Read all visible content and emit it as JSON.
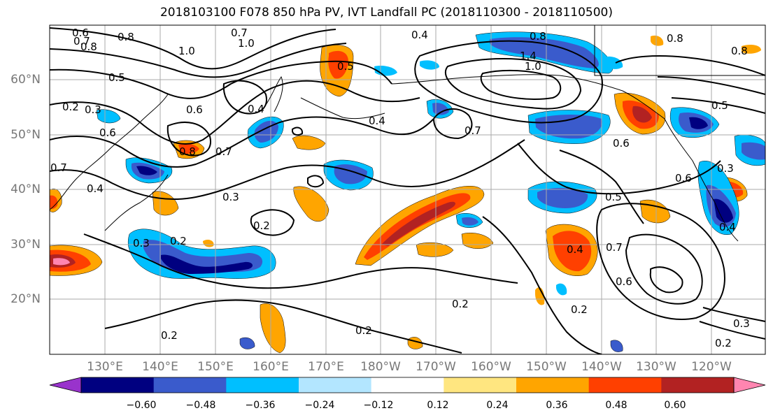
{
  "title": "2018103100 F078 850 hPa PV, IVT Landfall PC (2018110300 - 2018110500)",
  "lat_ticks": [
    "60°N",
    "50°N",
    "40°N",
    "30°N",
    "20°N"
  ],
  "lon_ticks": [
    "130°E",
    "140°E",
    "150°E",
    "160°E",
    "170°E",
    "180°W",
    "170°W",
    "160°W",
    "150°W",
    "140°W",
    "130°W",
    "120°W"
  ],
  "colorbar": {
    "colors": [
      "#9933cc",
      "#000080",
      "#3a5bcc",
      "#00bfff",
      "#b3e6ff",
      "#ffffff",
      "#ffe680",
      "#ffa500",
      "#ff4000",
      "#b22222",
      "#ff85b0"
    ],
    "tick_labels": [
      "−0.60",
      "−0.48",
      "−0.36",
      "−0.24",
      "−0.12",
      "0.12",
      "0.24",
      "0.36",
      "0.48",
      "0.60"
    ]
  },
  "contour_labels": [
    "0.6",
    "0.7",
    "0.8",
    "1.0",
    "0.7",
    "1.0",
    "0.4",
    "0.8",
    "1.4",
    "1.0",
    "0.8",
    "0.8",
    "0.5",
    "0.2",
    "0.3",
    "0.6",
    "0.7",
    "0.4",
    "0.6",
    "0.8",
    "0.7",
    "0.4",
    "0.4",
    "0.5",
    "0.7",
    "0.5",
    "0.6",
    "0.6",
    "0.3",
    "0.4",
    "0.3",
    "0.2",
    "0.3",
    "0.2",
    "0.5",
    "0.7",
    "0.4",
    "0.6",
    "0.2",
    "0.2",
    "0.2",
    "0.2",
    "0.3",
    "0.2",
    "0.8"
  ]
}
